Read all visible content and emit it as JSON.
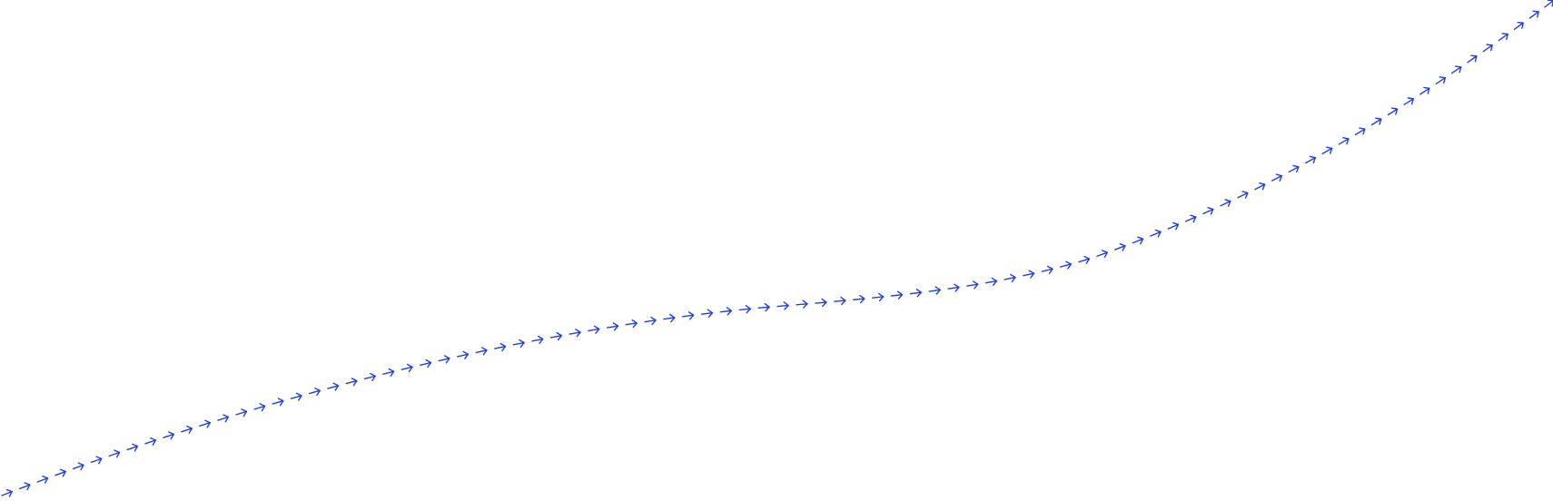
{
  "canvas": {
    "background": "#ffffff"
  },
  "arrow_path": {
    "stroke_color": "#1f3fe6",
    "marker": "chevron-arrow-icon",
    "direction": "left-to-right",
    "style": "dotted-arrow-chain"
  }
}
